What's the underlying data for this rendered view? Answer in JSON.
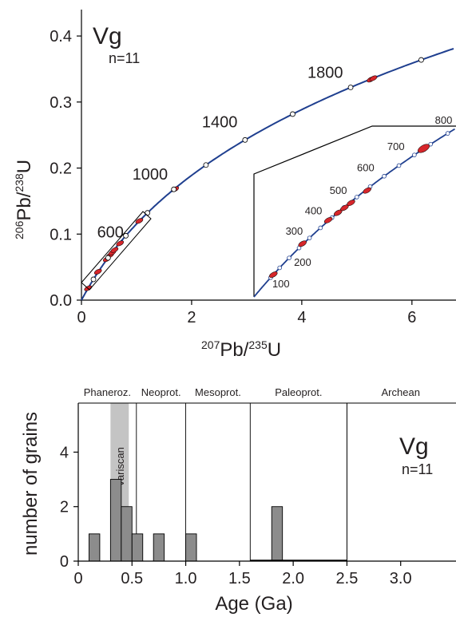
{
  "chart_data": [
    {
      "type": "scatter",
      "title": "Vg",
      "subtitle": "n=11",
      "xlabel_sup1": "207",
      "xlabel_a": "Pb/",
      "xlabel_sup2": "235",
      "xlabel_b": "U",
      "ylabel_sup1": "206",
      "ylabel_a": "Pb/",
      "ylabel_sup2": "238",
      "ylabel_b": "U",
      "xlim": [
        0,
        6.8
      ],
      "ylim": [
        0,
        0.44
      ],
      "xticks": [
        {
          "v": 0,
          "label": "0"
        },
        {
          "v": 2,
          "label": "2"
        },
        {
          "v": 4,
          "label": "4"
        },
        {
          "v": 6,
          "label": "6"
        }
      ],
      "yticks": [
        {
          "v": 0,
          "label": "0.0"
        },
        {
          "v": 0.1,
          "label": "0.1"
        },
        {
          "v": 0.2,
          "label": "0.2"
        },
        {
          "v": 0.3,
          "label": "0.3"
        },
        {
          "v": 0.4,
          "label": "0.4"
        }
      ],
      "concordia_age_labels": [
        {
          "age": 600,
          "label": "600"
        },
        {
          "age": 1000,
          "label": "1000"
        },
        {
          "age": 1400,
          "label": "1400"
        },
        {
          "age": 1800,
          "label": "1800"
        }
      ],
      "concordia_markers_ma": [
        200,
        400,
        600,
        800,
        1000,
        1200,
        1400,
        1600,
        1800,
        2000,
        2200
      ],
      "ellipses": [
        {
          "x": 0.12,
          "y": 0.018
        },
        {
          "x": 0.3,
          "y": 0.043
        },
        {
          "x": 0.46,
          "y": 0.062
        },
        {
          "x": 0.52,
          "y": 0.068
        },
        {
          "x": 0.56,
          "y": 0.072
        },
        {
          "x": 0.6,
          "y": 0.076
        },
        {
          "x": 0.7,
          "y": 0.086
        },
        {
          "x": 1.05,
          "y": 0.12
        },
        {
          "x": 1.7,
          "y": 0.168
        },
        {
          "x": 5.25,
          "y": 0.334
        },
        {
          "x": 5.3,
          "y": 0.336
        }
      ],
      "inset": {
        "xlim": [
          0,
          1.25
        ],
        "ylim": [
          0,
          0.138
        ],
        "age_labels": [
          {
            "age": 100,
            "label": "100"
          },
          {
            "age": 200,
            "label": "200"
          },
          {
            "age": 300,
            "label": "300"
          },
          {
            "age": 400,
            "label": "400"
          },
          {
            "age": 500,
            "label": "500"
          },
          {
            "age": 600,
            "label": "600"
          },
          {
            "age": 700,
            "label": "700"
          },
          {
            "age": 800,
            "label": "800"
          }
        ],
        "markers_ma": [
          100,
          150,
          200,
          250,
          300,
          350,
          400,
          450,
          500,
          550,
          600,
          650,
          700,
          750,
          800,
          850
        ]
      },
      "colors": {
        "concordia": "#1f3f8f",
        "ellipse": "#d6262b",
        "marker_fill": "#ffffff"
      }
    },
    {
      "type": "bar",
      "title": "Vg",
      "subtitle": "n=11",
      "xlabel": "Age (Ga)",
      "ylabel": "number of grains",
      "xlim": [
        0,
        3.5
      ],
      "ylim": [
        0,
        5.8
      ],
      "xticks": [
        {
          "v": 0,
          "label": "0"
        },
        {
          "v": 0.5,
          "label": "0.5"
        },
        {
          "v": 1.0,
          "label": "1.0"
        },
        {
          "v": 1.5,
          "label": "1.5"
        },
        {
          "v": 2.0,
          "label": "2.0"
        },
        {
          "v": 2.5,
          "label": "2.5"
        },
        {
          "v": 3.0,
          "label": "3.0"
        }
      ],
      "yticks": [
        {
          "v": 0,
          "label": "0"
        },
        {
          "v": 2,
          "label": "2"
        },
        {
          "v": 4,
          "label": "4"
        }
      ],
      "bins": [
        {
          "x0": 0.1,
          "x1": 0.2,
          "count": 1
        },
        {
          "x0": 0.3,
          "x1": 0.4,
          "count": 3
        },
        {
          "x0": 0.4,
          "x1": 0.5,
          "count": 2
        },
        {
          "x0": 0.5,
          "x1": 0.6,
          "count": 1
        },
        {
          "x0": 0.7,
          "x1": 0.8,
          "count": 1
        },
        {
          "x0": 1.0,
          "x1": 1.1,
          "count": 1
        },
        {
          "x0": 1.8,
          "x1": 1.9,
          "count": 2
        }
      ],
      "eras": [
        {
          "label": "Phaneroz.",
          "from": 0,
          "to": 0.541
        },
        {
          "label": "Neoprot.",
          "from": 0.541,
          "to": 1.0
        },
        {
          "label": "Mesoprot.",
          "from": 1.0,
          "to": 1.6
        },
        {
          "label": "Paleoprot.",
          "from": 1.6,
          "to": 2.5
        },
        {
          "label": "Archean",
          "from": 2.5,
          "to": 3.5
        }
      ],
      "highlight": {
        "label": "Variscan",
        "from": 0.3,
        "to": 0.47,
        "color": "#c4c4c4"
      },
      "colors": {
        "bar": "#8c8c8c"
      }
    }
  ]
}
